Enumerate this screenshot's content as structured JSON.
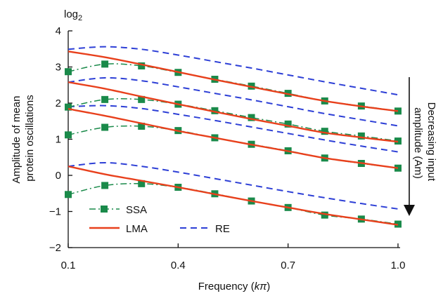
{
  "chart_data": {
    "type": "line",
    "ylabel_lines": [
      "Amplitude of mean",
      "protein oscillations"
    ],
    "xlabel_prefix": "Frequency (",
    "xlabel_italic": "k",
    "xlabel_pi": "π",
    "xlabel_suffix": ")",
    "y_unit_base": "log",
    "y_unit_sub": "2",
    "annotation_lines": [
      "Decreasing input",
      "amplitude (Am)"
    ],
    "xlim": [
      0.1,
      1.0
    ],
    "ylim": [
      -2,
      4
    ],
    "xticks": [
      0.1,
      0.4,
      0.7,
      1.0
    ],
    "xtick_labels": [
      "0.1",
      "0.4",
      "0.7",
      "1.0"
    ],
    "yticks": [
      -2,
      -1,
      0,
      1,
      2,
      3,
      4
    ],
    "ytick_labels": [
      "−2",
      "−1",
      "0",
      "1",
      "2",
      "3",
      "4"
    ],
    "grid": false,
    "legend_position": "bottom-left",
    "legend": [
      {
        "name": "SSA",
        "style": "dashdot-square"
      },
      {
        "name": "LMA",
        "style": "solid"
      },
      {
        "name": "RE",
        "style": "dashed"
      }
    ],
    "colors": {
      "SSA": "#1a8a4a",
      "LMA": "#e8401c",
      "RE": "#2d3fd6"
    },
    "x": [
      0.1,
      0.2,
      0.3,
      0.4,
      0.5,
      0.6,
      0.7,
      0.8,
      0.9,
      1.0
    ],
    "series": [
      {
        "name": "SSA",
        "group": 1,
        "values": [
          2.87,
          3.08,
          3.03,
          2.85,
          2.66,
          2.47,
          2.27,
          2.06,
          1.92,
          1.78
        ]
      },
      {
        "name": "SSA",
        "group": 2,
        "values": [
          1.89,
          2.1,
          2.1,
          1.97,
          1.79,
          1.6,
          1.42,
          1.22,
          1.09,
          0.95
        ]
      },
      {
        "name": "SSA",
        "group": 3,
        "values": [
          1.12,
          1.33,
          1.36,
          1.24,
          1.04,
          0.86,
          0.68,
          0.48,
          0.33,
          0.2
        ]
      },
      {
        "name": "SSA",
        "group": 4,
        "values": [
          -0.53,
          -0.28,
          -0.23,
          -0.33,
          -0.51,
          -0.71,
          -0.89,
          -1.1,
          -1.21,
          -1.35
        ]
      },
      {
        "name": "LMA",
        "group": 1,
        "values": [
          3.43,
          3.27,
          3.07,
          2.86,
          2.65,
          2.45,
          2.25,
          2.06,
          1.91,
          1.78
        ]
      },
      {
        "name": "LMA",
        "group": 2,
        "values": [
          2.58,
          2.4,
          2.18,
          1.97,
          1.76,
          1.56,
          1.37,
          1.18,
          1.05,
          0.93
        ]
      },
      {
        "name": "LMA",
        "group": 3,
        "values": [
          1.84,
          1.65,
          1.44,
          1.23,
          1.04,
          0.85,
          0.67,
          0.48,
          0.34,
          0.2
        ]
      },
      {
        "name": "LMA",
        "group": 4,
        "values": [
          0.25,
          0.03,
          -0.15,
          -0.33,
          -0.52,
          -0.71,
          -0.89,
          -1.07,
          -1.22,
          -1.37
        ]
      },
      {
        "name": "RE",
        "group": 1,
        "values": [
          3.49,
          3.56,
          3.49,
          3.33,
          3.15,
          2.97,
          2.78,
          2.59,
          2.41,
          2.23
        ]
      },
      {
        "name": "RE",
        "group": 2,
        "values": [
          2.58,
          2.7,
          2.62,
          2.45,
          2.27,
          2.09,
          1.9,
          1.71,
          1.54,
          1.37
        ]
      },
      {
        "name": "RE",
        "group": 3,
        "values": [
          1.9,
          1.93,
          1.85,
          1.69,
          1.52,
          1.34,
          1.16,
          0.98,
          0.81,
          0.65
        ]
      },
      {
        "name": "RE",
        "group": 4,
        "values": [
          0.25,
          0.35,
          0.25,
          0.09,
          -0.09,
          -0.27,
          -0.45,
          -0.62,
          -0.78,
          -0.93
        ]
      }
    ]
  }
}
